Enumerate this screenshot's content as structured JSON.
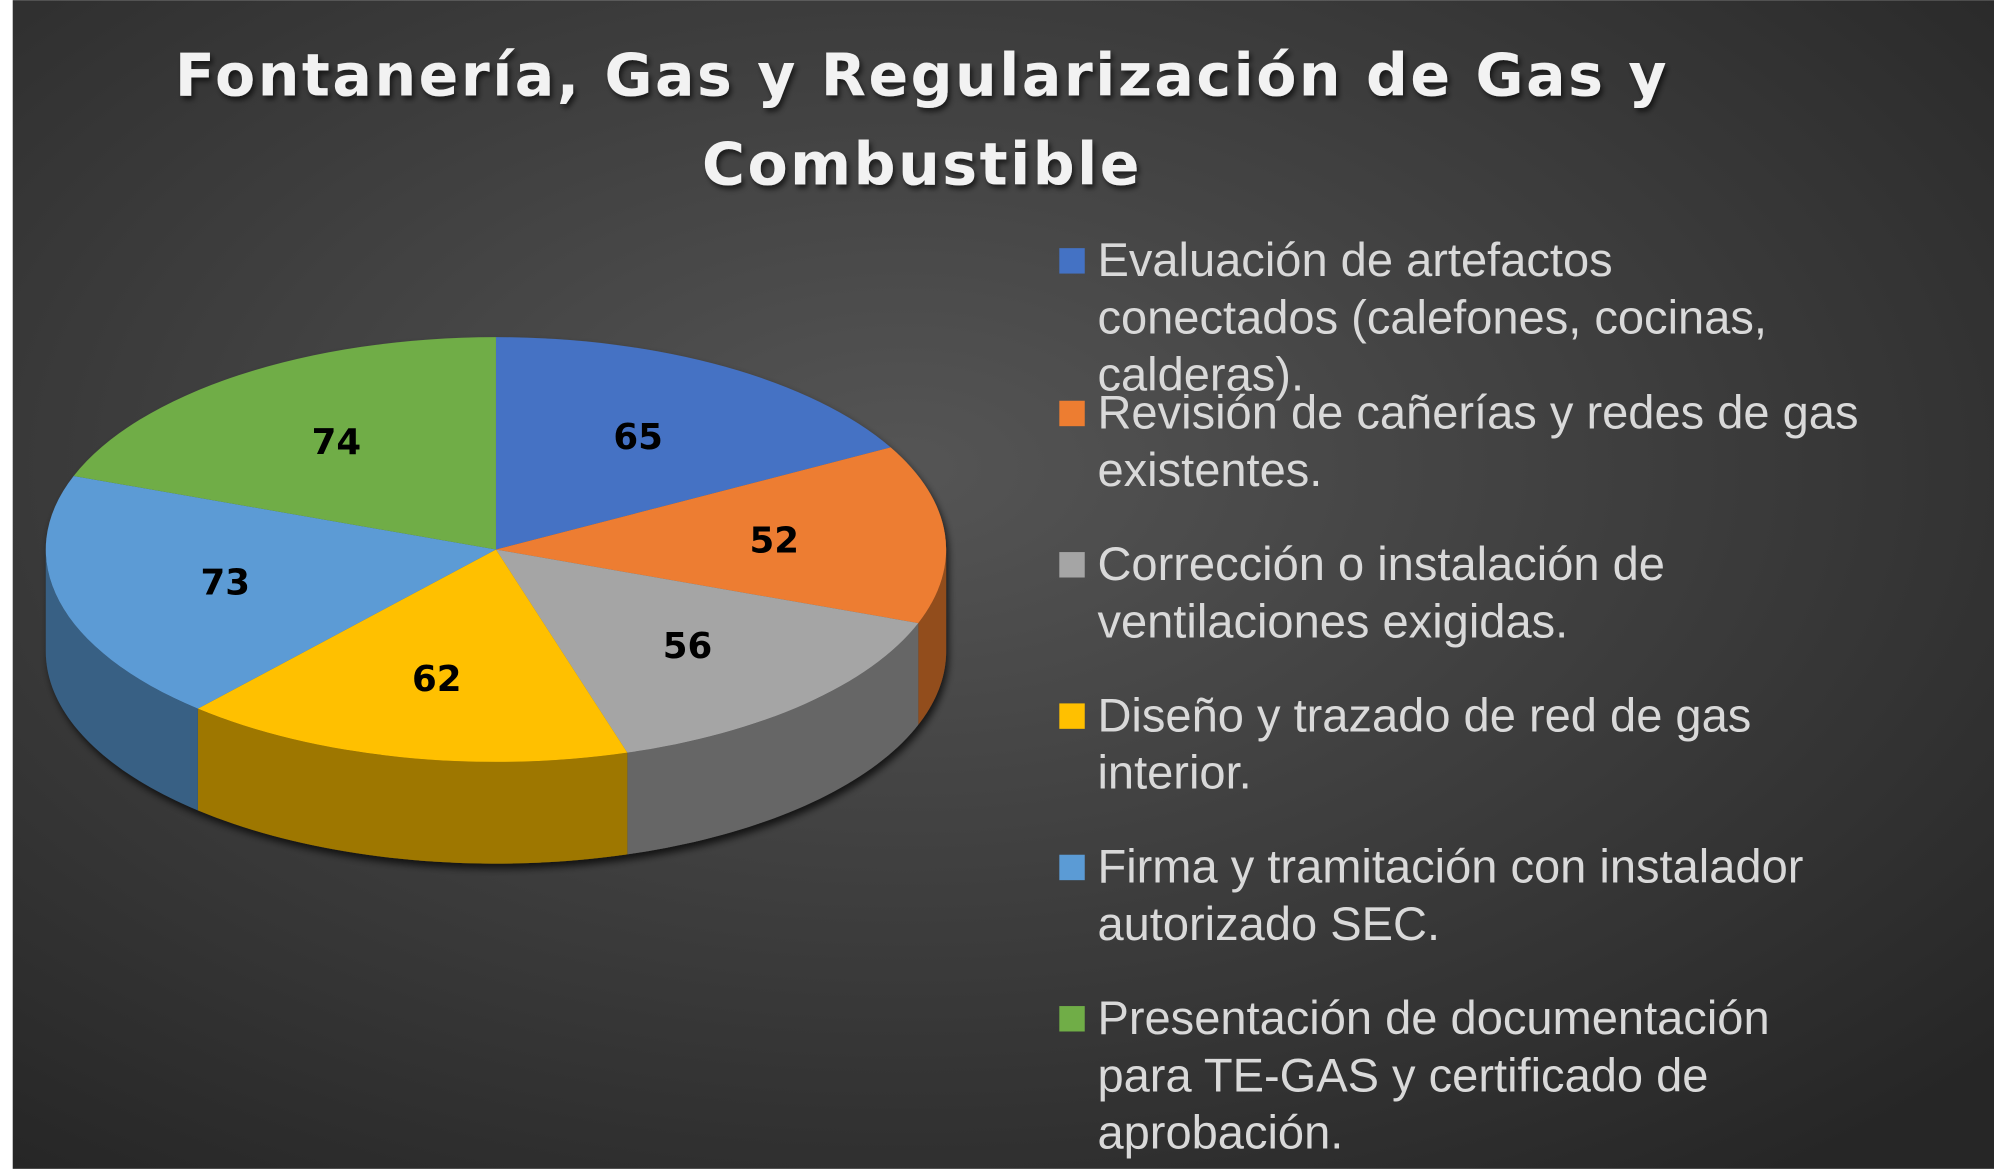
{
  "chart_data": {
    "type": "pie",
    "style": "3d",
    "title_lines": [
      "Fontanería, Gas y Regularización de Gas y",
      "Combustible"
    ],
    "legend_position": "right",
    "series": [
      {
        "label_lines": [
          "Evaluación de artefactos",
          "conectados (calefones, cocinas,",
          "calderas)."
        ],
        "value": 65,
        "color": "#4472c4"
      },
      {
        "label_lines": [
          "Revisión de cañerías y redes de gas",
          "existentes."
        ],
        "value": 52,
        "color": "#ed7d31"
      },
      {
        "label_lines": [
          "Corrección o instalación de",
          "ventilaciones exigidas."
        ],
        "value": 56,
        "color": "#a5a5a5"
      },
      {
        "label_lines": [
          "Diseño y trazado de red de gas",
          "interior."
        ],
        "value": 62,
        "color": "#ffc000"
      },
      {
        "label_lines": [
          "Firma y tramitación con instalador",
          "autorizado SEC."
        ],
        "value": 73,
        "color": "#5b9bd5"
      },
      {
        "label_lines": [
          "Presentación de documentación",
          "para TE-GAS y certificado de",
          "aprobación."
        ],
        "value": 74,
        "color": "#70ad47"
      }
    ]
  }
}
